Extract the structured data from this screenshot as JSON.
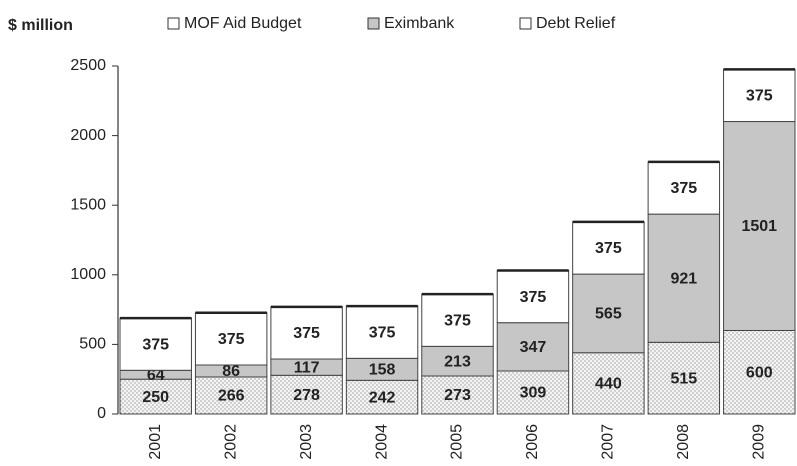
{
  "chart_data": {
    "type": "stacked_bar",
    "y_label": "$ million",
    "categories": [
      "2001",
      "2002",
      "2003",
      "2004",
      "2005",
      "2006",
      "2007",
      "2008",
      "2009"
    ],
    "series": [
      {
        "name": "MOF Aid Budget",
        "color": "#f4f4f4",
        "values": [
          250,
          266,
          278,
          242,
          273,
          309,
          440,
          515,
          600
        ]
      },
      {
        "name": "Eximbank",
        "color": "#c6c6c6",
        "values": [
          64,
          86,
          117,
          158,
          213,
          347,
          565,
          921,
          1501
        ]
      },
      {
        "name": "Debt Relief",
        "color": "#ffffff",
        "values": [
          375,
          375,
          375,
          375,
          375,
          375,
          375,
          375,
          375
        ]
      }
    ],
    "ylim": [
      0,
      2500
    ],
    "yticks": [
      0,
      500,
      1000,
      1500,
      2000,
      2500
    ]
  }
}
